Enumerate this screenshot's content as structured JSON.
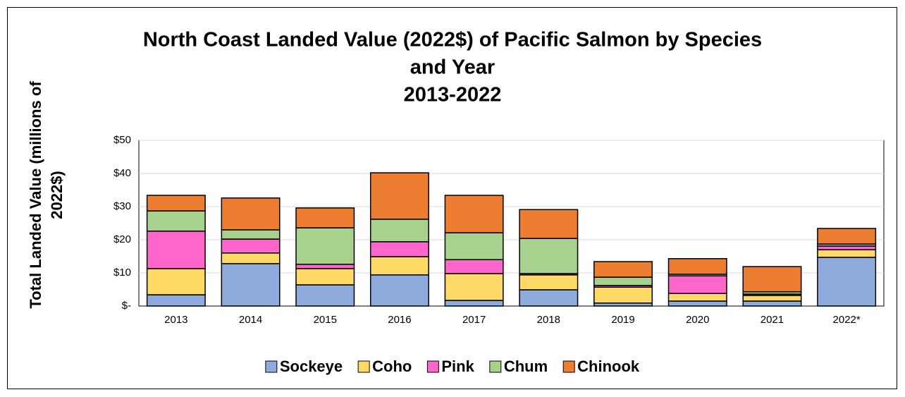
{
  "chart_data": {
    "type": "stacked_bar",
    "title": [
      "North Coast Landed Value (2022$) of Pacific Salmon by Species",
      "and Year",
      "2013-2022"
    ],
    "y_label": [
      "Total Landed Value (millions of",
      "2022$)"
    ],
    "categories": [
      "2013",
      "2014",
      "2015",
      "2016",
      "2017",
      "2018",
      "2019",
      "2020",
      "2021",
      "2022*"
    ],
    "series": [
      {
        "name": "Sockeye",
        "color": "#8faadc",
        "values": [
          3.4,
          12.8,
          6.4,
          9.4,
          1.7,
          4.9,
          0.9,
          1.5,
          1.5,
          14.7
        ]
      },
      {
        "name": "Coho",
        "color": "#ffd966",
        "values": [
          7.9,
          3.2,
          4.9,
          5.5,
          8.1,
          4.5,
          4.8,
          2.3,
          1.7,
          2.3
        ]
      },
      {
        "name": "Pink",
        "color": "#ff66cc",
        "values": [
          11.3,
          4.2,
          1.3,
          4.5,
          4.2,
          0.4,
          0.5,
          5.3,
          0.4,
          1.1
        ]
      },
      {
        "name": "Chum",
        "color": "#a9d18e",
        "values": [
          6.1,
          2.8,
          11.0,
          6.8,
          8.1,
          10.6,
          2.5,
          0.5,
          0.7,
          0.6
        ]
      },
      {
        "name": "Chinook",
        "color": "#ed7d31",
        "values": [
          4.7,
          9.6,
          6.0,
          14.0,
          11.3,
          8.7,
          4.7,
          4.7,
          7.6,
          4.7
        ]
      }
    ],
    "ylim": [
      0,
      50
    ],
    "yticks": [
      {
        "value": 0,
        "label": "$-"
      },
      {
        "value": 10,
        "label": "$10"
      },
      {
        "value": 20,
        "label": "$20"
      },
      {
        "value": 30,
        "label": "$30"
      },
      {
        "value": 40,
        "label": "$40"
      },
      {
        "value": 50,
        "label": "$50"
      }
    ],
    "grid": true,
    "legend": "bottom"
  }
}
